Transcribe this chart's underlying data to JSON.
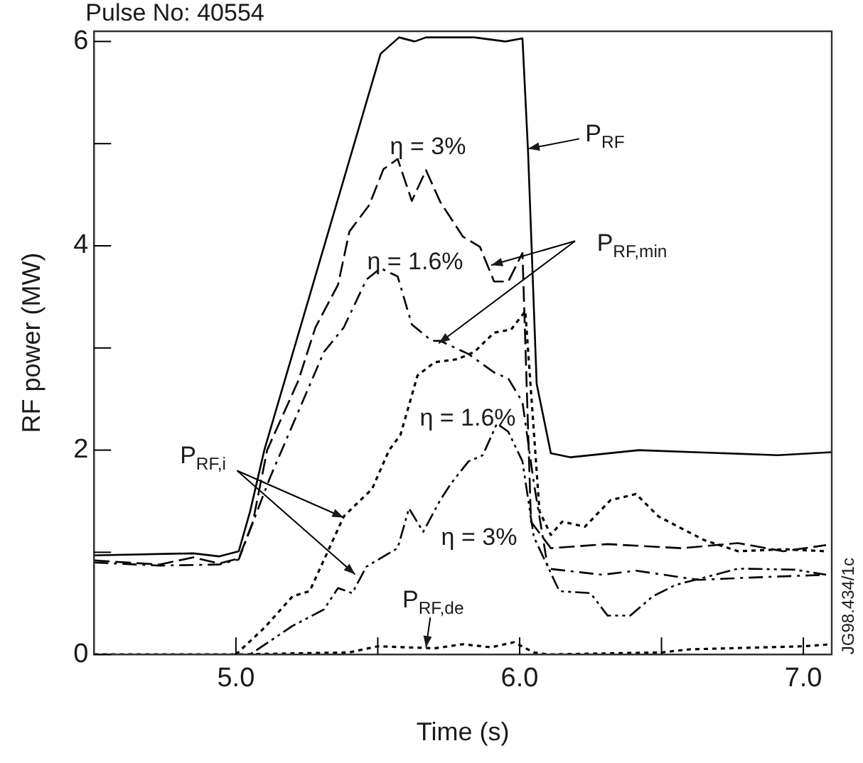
{
  "chart_data": {
    "type": "line",
    "title": "Pulse No: 40554",
    "xlabel": "Time (s)",
    "ylabel": "RF power (MW)",
    "xlim": [
      4.5,
      7.1
    ],
    "ylim": [
      0,
      6.1
    ],
    "xticks": [
      {
        "value": 5,
        "label": "5.0"
      },
      {
        "value": 5.5,
        "label": null
      },
      {
        "value": 6,
        "label": "6.0"
      },
      {
        "value": 6.5,
        "label": null
      },
      {
        "value": 7,
        "label": "7.0"
      }
    ],
    "yticks": [
      0,
      {
        "value": 1,
        "label": null
      },
      2,
      {
        "value": 3,
        "label": null
      },
      4,
      {
        "value": 5,
        "label": null
      },
      6
    ],
    "grid": false,
    "legend": false,
    "marker": "none",
    "series": [
      {
        "color": "#000000",
        "line_style": "solid",
        "x": [
          4.5,
          4.85,
          4.94,
          5.01,
          5.05,
          5.1,
          5.51,
          5.575,
          5.63,
          5.67,
          5.84,
          5.95,
          6.01,
          6.03,
          6.06,
          6.11,
          6.18,
          6.42,
          6.91,
          7.1
        ],
        "values": [
          0.97,
          0.99,
          0.96,
          1.01,
          1.4,
          2.0,
          5.88,
          6.04,
          6.0,
          6.04,
          6.04,
          6.0,
          6.03,
          4.9,
          2.65,
          1.97,
          1.93,
          2.0,
          1.95,
          1.98
        ]
      },
      {
        "color": "#000000",
        "line_style": "dashed",
        "x": [
          4.5,
          4.73,
          4.85,
          4.94,
          5.01,
          5.06,
          5.11,
          5.22,
          5.28,
          5.36,
          5.4,
          5.47,
          5.52,
          5.57,
          5.62,
          5.67,
          5.72,
          5.8,
          5.86,
          5.91,
          5.96,
          6.01,
          6.04,
          6.11,
          6.31,
          6.57,
          6.77,
          6.93,
          7.08
        ],
        "values": [
          0.92,
          0.88,
          0.95,
          0.89,
          0.94,
          1.3,
          2.0,
          2.68,
          3.2,
          3.62,
          4.14,
          4.4,
          4.75,
          4.85,
          4.44,
          4.74,
          4.43,
          4.09,
          3.99,
          3.65,
          3.65,
          3.93,
          1.3,
          1.04,
          1.08,
          1.04,
          1.09,
          1.01,
          1.07
        ]
      },
      {
        "color": "#000000",
        "line_style": "dashdot",
        "x": [
          4.5,
          4.73,
          4.94,
          5.01,
          5.12,
          5.31,
          5.38,
          5.46,
          5.51,
          5.57,
          5.62,
          5.69,
          5.72,
          5.82,
          5.91,
          5.96,
          6.01,
          6.05,
          6.1,
          6.29,
          6.41,
          6.63,
          6.79,
          7.08
        ],
        "values": [
          0.9,
          0.87,
          0.88,
          0.93,
          1.73,
          2.96,
          3.2,
          3.67,
          3.78,
          3.7,
          3.23,
          3.07,
          3.07,
          2.94,
          2.76,
          2.7,
          2.47,
          1.68,
          0.84,
          0.78,
          0.82,
          0.73,
          0.75,
          0.78
        ]
      },
      {
        "color": "#000000",
        "line_style": "dotted",
        "x": [
          5.0,
          5.1,
          5.2,
          5.26,
          5.38,
          5.42,
          5.48,
          5.54,
          5.58,
          5.64,
          5.7,
          5.78,
          5.84,
          5.91,
          5.97,
          6.02,
          6.07,
          6.11,
          6.15,
          6.23,
          6.32,
          6.41,
          6.49,
          6.65,
          6.77,
          6.93,
          7.08
        ],
        "values": [
          0,
          0.26,
          0.57,
          0.62,
          1.35,
          1.46,
          1.62,
          2.0,
          2.15,
          2.73,
          2.86,
          2.89,
          2.96,
          3.15,
          3.18,
          3.36,
          1.4,
          1.17,
          1.3,
          1.25,
          1.51,
          1.57,
          1.35,
          1.12,
          1.01,
          1.03,
          1.01
        ]
      },
      {
        "color": "#000000",
        "line_style": "dashdotdot",
        "x": [
          4.5,
          5.05,
          5.2,
          5.31,
          5.36,
          5.41,
          5.46,
          5.57,
          5.61,
          5.66,
          5.72,
          5.76,
          5.82,
          5.87,
          5.92,
          5.96,
          6.01,
          6.05,
          6.14,
          6.25,
          6.31,
          6.39,
          6.47,
          6.55,
          6.77,
          6.97,
          7.08
        ],
        "values": [
          0,
          0,
          0.28,
          0.44,
          0.65,
          0.6,
          0.86,
          1.04,
          1.43,
          1.2,
          1.51,
          1.68,
          1.89,
          1.95,
          2.26,
          2.18,
          1.89,
          1.15,
          0.62,
          0.6,
          0.38,
          0.38,
          0.57,
          0.68,
          0.84,
          0.83,
          0.78
        ]
      },
      {
        "color": "#000000",
        "line_style": "dotted",
        "x": [
          4.5,
          5.0,
          5.4,
          5.5,
          5.7,
          5.8,
          5.9,
          5.98,
          6.05,
          6.1,
          6.5,
          6.6,
          7.0,
          7.1
        ],
        "values": [
          0,
          0,
          0.02,
          0.08,
          0.06,
          0.1,
          0.07,
          0.12,
          0.02,
          0,
          0.02,
          0.05,
          0.08,
          0.1
        ]
      }
    ],
    "annotations": [
      {
        "text": "P$_{RF}$",
        "x": 6.03,
        "y": 4.95
      },
      "η = 3%",
      {
        "text": "P$_{RF,min}$",
        "x": 5.9,
        "y": 3.81
      },
      "η = 1.6%",
      "η = 1.6%",
      {
        "text": "P$_{RF,i}$",
        "x": 5.38,
        "y": 1.34
      },
      "η = 3%",
      {
        "text": "P$_{RF,de}$",
        "x": 5.67,
        "y": 0.07
      },
      "JG98.434/1c"
    ]
  }
}
